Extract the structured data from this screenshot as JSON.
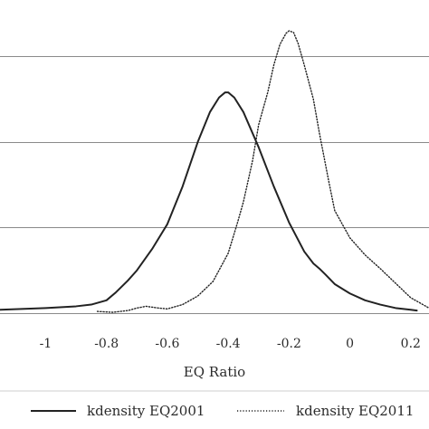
{
  "chart_data": {
    "type": "line",
    "title": "",
    "xlabel": "EQ Ratio",
    "ylabel": "",
    "xlim": [
      -1.15,
      0.26
    ],
    "ylim": [
      0,
      3.3
    ],
    "grid": "horizontal",
    "legend_placement": "bottom",
    "x_ticks": [
      {
        "value": -1,
        "label": "-1"
      },
      {
        "value": -0.8,
        "label": "-0.8"
      },
      {
        "value": -0.6,
        "label": "-0.6"
      },
      {
        "value": -0.4,
        "label": "-0.4"
      },
      {
        "value": -0.2,
        "label": "-0.2"
      },
      {
        "value": 0,
        "label": "0"
      },
      {
        "value": 0.2,
        "label": "0.2"
      }
    ],
    "y_grid": [
      0,
      1,
      2,
      3
    ],
    "series": [
      {
        "name": "kdensity EQ2001",
        "style": "solid",
        "color": "#222222",
        "x": [
          -1.15,
          -1.0,
          -0.9,
          -0.85,
          -0.8,
          -0.77,
          -0.73,
          -0.7,
          -0.65,
          -0.6,
          -0.55,
          -0.5,
          -0.46,
          -0.43,
          -0.41,
          -0.4,
          -0.38,
          -0.35,
          -0.3,
          -0.25,
          -0.2,
          -0.15,
          -0.12,
          -0.1,
          -0.08,
          -0.05,
          0.0,
          0.05,
          0.1,
          0.15,
          0.2,
          0.22
        ],
        "y": [
          0.04,
          0.06,
          0.08,
          0.1,
          0.15,
          0.24,
          0.38,
          0.5,
          0.75,
          1.04,
          1.48,
          2.0,
          2.35,
          2.52,
          2.58,
          2.58,
          2.52,
          2.35,
          1.94,
          1.48,
          1.06,
          0.72,
          0.58,
          0.52,
          0.45,
          0.34,
          0.23,
          0.15,
          0.1,
          0.06,
          0.04,
          0.03
        ]
      },
      {
        "name": "kdensity EQ2011",
        "style": "dotted",
        "color": "#222222",
        "x": [
          -0.83,
          -0.78,
          -0.73,
          -0.7,
          -0.67,
          -0.63,
          -0.6,
          -0.55,
          -0.5,
          -0.45,
          -0.4,
          -0.37,
          -0.35,
          -0.32,
          -0.3,
          -0.27,
          -0.25,
          -0.23,
          -0.21,
          -0.2,
          -0.185,
          -0.17,
          -0.15,
          -0.12,
          -0.1,
          -0.07,
          -0.05,
          0.0,
          0.05,
          0.1,
          0.15,
          0.2,
          0.26
        ],
        "y": [
          0.02,
          0.01,
          0.03,
          0.06,
          0.08,
          0.06,
          0.05,
          0.1,
          0.2,
          0.37,
          0.7,
          1.05,
          1.3,
          1.78,
          2.2,
          2.58,
          2.9,
          3.14,
          3.27,
          3.3,
          3.28,
          3.15,
          2.9,
          2.5,
          2.1,
          1.55,
          1.2,
          0.88,
          0.68,
          0.52,
          0.35,
          0.18,
          0.06
        ]
      }
    ]
  }
}
